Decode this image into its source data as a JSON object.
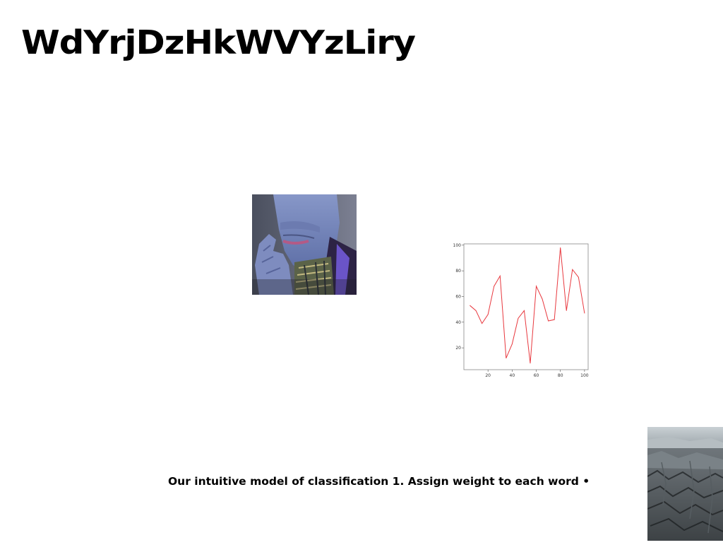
{
  "slide": {
    "title": "WdYrjDzHkWVYzLiry",
    "caption": "Our intuitive model of classification 1. Assign weight to each word •"
  },
  "images": {
    "portrait": "portrait-photo",
    "landscape": "rocky-landscape-photo"
  },
  "chart_data": {
    "type": "line",
    "x": [
      5,
      10,
      15,
      20,
      25,
      30,
      35,
      40,
      45,
      50,
      55,
      60,
      65,
      70,
      75,
      80,
      85,
      90,
      95,
      100
    ],
    "series": [
      {
        "color": "#e8393f",
        "values": [
          53,
          49,
          39,
          46,
          68,
          76,
          12,
          23,
          43,
          49,
          8,
          68,
          58,
          41,
          42,
          98,
          49,
          81,
          75,
          47
        ]
      }
    ],
    "xticks": [
      "20",
      "40",
      "60",
      "80",
      "100"
    ],
    "yticks": [
      "20",
      "40",
      "60",
      "80",
      "100"
    ],
    "xlim": [
      0,
      103
    ],
    "ylim": [
      3,
      101
    ],
    "grid": false,
    "title": "",
    "xlabel": "",
    "ylabel": ""
  }
}
